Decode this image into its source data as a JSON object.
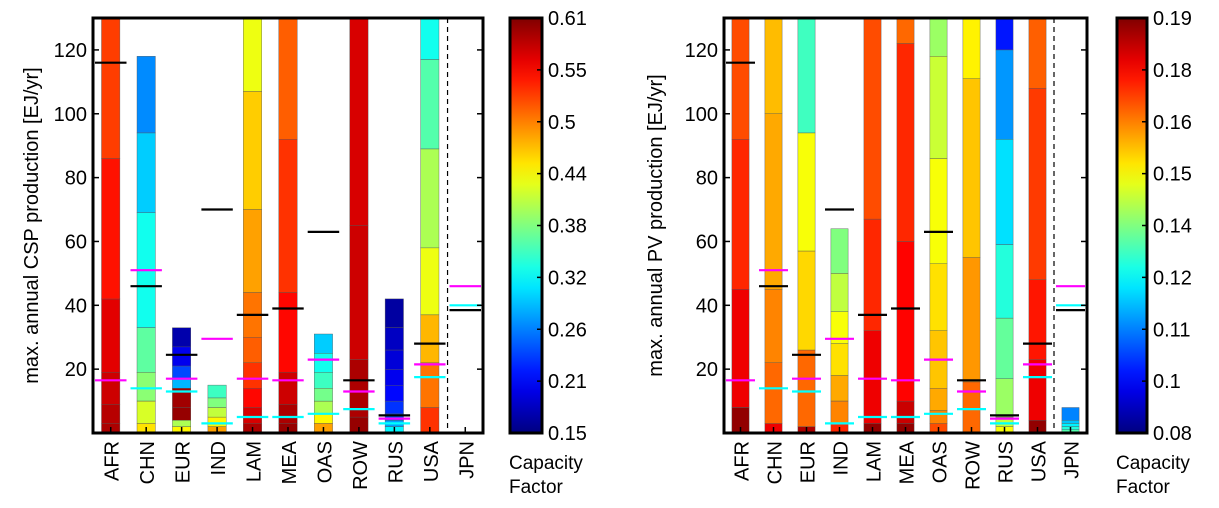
{
  "chart_data": [
    {
      "type": "bar",
      "ylabel": "max. annual CSP production [EJ/yr]",
      "ylim": [
        0,
        130
      ],
      "yticks": [
        20,
        40,
        60,
        80,
        100,
        120
      ],
      "grid": false,
      "categories": [
        "AFR",
        "CHN",
        "EUR",
        "IND",
        "LAM",
        "MEA",
        "OAS",
        "ROW",
        "RUS",
        "USA",
        "JPN"
      ],
      "separator_after": "USA",
      "colorbar": {
        "ticks": [
          "0.61",
          "0.55",
          "0.5",
          "0.44",
          "0.38",
          "0.32",
          "0.26",
          "0.21",
          "0.15"
        ],
        "min": 0.15,
        "max": 0.61,
        "label_line1": "Capacity",
        "label_line2": "Factor"
      },
      "stacks": [
        {
          "region": "AFR",
          "total": 130,
          "segments": [
            [
              0,
              3,
              0.59
            ],
            [
              3,
              9,
              0.585
            ],
            [
              9,
              19,
              0.575
            ],
            [
              19,
              42,
              0.565
            ],
            [
              42,
              86,
              0.545
            ],
            [
              86,
              130,
              0.525
            ]
          ]
        },
        {
          "region": "CHN",
          "total": 118,
          "segments": [
            [
              0,
              3,
              0.45
            ],
            [
              3,
              10,
              0.42
            ],
            [
              10,
              19,
              0.385
            ],
            [
              19,
              33,
              0.365
            ],
            [
              33,
              69,
              0.33
            ],
            [
              69,
              94,
              0.3
            ],
            [
              94,
              118,
              0.27
            ]
          ]
        },
        {
          "region": "EUR",
          "total": 33,
          "segments": [
            [
              0,
              2,
              0.44
            ],
            [
              2,
              4,
              0.4
            ],
            [
              4,
              8,
              0.6
            ],
            [
              8,
              14,
              0.595
            ],
            [
              14,
              17,
              0.29
            ],
            [
              17,
              21,
              0.24
            ],
            [
              21,
              27,
              0.2
            ],
            [
              27,
              33,
              0.17
            ]
          ]
        },
        {
          "region": "IND",
          "total": 15,
          "segments": [
            [
              0,
              2,
              0.48
            ],
            [
              2,
              5,
              0.44
            ],
            [
              5,
              8,
              0.41
            ],
            [
              8,
              11,
              0.38
            ],
            [
              11,
              15,
              0.35
            ]
          ]
        },
        {
          "region": "LAM",
          "total": 130,
          "segments": [
            [
              0,
              3,
              0.59
            ],
            [
              3,
              8,
              0.57
            ],
            [
              8,
              14,
              0.55
            ],
            [
              14,
              22,
              0.53
            ],
            [
              22,
              30,
              0.51
            ],
            [
              30,
              44,
              0.5
            ],
            [
              44,
              70,
              0.48
            ],
            [
              70,
              107,
              0.46
            ],
            [
              107,
              130,
              0.43
            ]
          ]
        },
        {
          "region": "MEA",
          "total": 130,
          "segments": [
            [
              0,
              3,
              0.6
            ],
            [
              3,
              9,
              0.59
            ],
            [
              9,
              19,
              0.575
            ],
            [
              19,
              44,
              0.55
            ],
            [
              44,
              92,
              0.53
            ],
            [
              92,
              130,
              0.51
            ]
          ]
        },
        {
          "region": "OAS",
          "total": 31,
          "segments": [
            [
              0,
              3,
              0.48
            ],
            [
              3,
              6,
              0.44
            ],
            [
              6,
              10,
              0.4
            ],
            [
              10,
              14,
              0.375
            ],
            [
              14,
              19,
              0.35
            ],
            [
              19,
              25,
              0.33
            ],
            [
              25,
              31,
              0.3
            ]
          ]
        },
        {
          "region": "ROW",
          "total": 130,
          "segments": [
            [
              0,
              5,
              0.6
            ],
            [
              5,
              23,
              0.59
            ],
            [
              23,
              65,
              0.575
            ],
            [
              65,
              130,
              0.57
            ]
          ]
        },
        {
          "region": "RUS",
          "total": 42,
          "segments": [
            [
              0,
              2,
              0.32
            ],
            [
              2,
              4,
              0.28
            ],
            [
              4,
              6,
              0.25
            ],
            [
              6,
              10,
              0.23
            ],
            [
              10,
              15,
              0.21
            ],
            [
              15,
              20,
              0.2
            ],
            [
              20,
              26,
              0.19
            ],
            [
              26,
              33,
              0.18
            ],
            [
              33,
              42,
              0.165
            ]
          ]
        },
        {
          "region": "USA",
          "total": 130,
          "segments": [
            [
              0,
              8,
              0.53
            ],
            [
              8,
              22,
              0.5
            ],
            [
              22,
              37,
              0.47
            ],
            [
              37,
              58,
              0.43
            ],
            [
              58,
              89,
              0.4
            ],
            [
              89,
              117,
              0.36
            ],
            [
              117,
              130,
              0.33
            ]
          ]
        },
        {
          "region": "JPN",
          "total": 0,
          "segments": []
        }
      ],
      "markers": {
        "black": [
          116,
          46,
          24.5,
          70,
          37,
          39,
          63,
          16.5,
          5.5,
          28,
          38.5
        ],
        "magenta": [
          16.5,
          51,
          17,
          29.5,
          17,
          16.5,
          23,
          13,
          4.5,
          21.5,
          46
        ],
        "cyan": [
          null,
          14,
          13,
          3,
          5,
          5,
          6,
          7.5,
          3,
          17.5,
          40
        ]
      }
    },
    {
      "type": "bar",
      "ylabel": "max. annual PV production [EJ/yr]",
      "ylim": [
        0,
        130
      ],
      "yticks": [
        20,
        40,
        60,
        80,
        100,
        120
      ],
      "grid": false,
      "categories": [
        "AFR",
        "CHN",
        "EUR",
        "IND",
        "LAM",
        "MEA",
        "OAS",
        "ROW",
        "RUS",
        "USA",
        "JPN"
      ],
      "separator_after": "USA",
      "colorbar": {
        "ticks": [
          "0.19",
          "0.18",
          "0.16",
          "0.15",
          "0.14",
          "0.12",
          "0.11",
          "0.1",
          "0.08"
        ],
        "min": 0.08,
        "max": 0.19,
        "label_line1": "Capacity",
        "label_line2": "Factor"
      },
      "stacks": [
        {
          "region": "AFR",
          "total": 130,
          "segments": [
            [
              0,
              8,
              0.188
            ],
            [
              8,
              45,
              0.178
            ],
            [
              45,
              92,
              0.172
            ],
            [
              92,
              130,
              0.168
            ]
          ]
        },
        {
          "region": "CHN",
          "total": 130,
          "segments": [
            [
              0,
              3,
              0.178
            ],
            [
              3,
              22,
              0.165
            ],
            [
              22,
              45,
              0.162
            ],
            [
              45,
              100,
              0.158
            ],
            [
              100,
              130,
              0.156
            ]
          ]
        },
        {
          "region": "EUR",
          "total": 130,
          "segments": [
            [
              0,
              2,
              0.185
            ],
            [
              2,
              26,
              0.165
            ],
            [
              26,
              57,
              0.153
            ],
            [
              57,
              94,
              0.148
            ],
            [
              94,
              130,
              0.128
            ]
          ]
        },
        {
          "region": "IND",
          "total": 64,
          "segments": [
            [
              0,
              3,
              0.172
            ],
            [
              3,
              10,
              0.162
            ],
            [
              10,
              18,
              0.158
            ],
            [
              18,
              28,
              0.152
            ],
            [
              28,
              38,
              0.148
            ],
            [
              38,
              50,
              0.142
            ],
            [
              50,
              64,
              0.135
            ]
          ]
        },
        {
          "region": "LAM",
          "total": 130,
          "segments": [
            [
              0,
              3,
              0.188
            ],
            [
              3,
              32,
              0.178
            ],
            [
              32,
              67,
              0.172
            ],
            [
              67,
              130,
              0.168
            ]
          ]
        },
        {
          "region": "MEA",
          "total": 130,
          "segments": [
            [
              0,
              3,
              0.188
            ],
            [
              3,
              10,
              0.182
            ],
            [
              10,
              60,
              0.176
            ],
            [
              60,
              122,
              0.172
            ],
            [
              122,
              130,
              0.165
            ]
          ]
        },
        {
          "region": "OAS",
          "total": 130,
          "segments": [
            [
              0,
              3,
              0.168
            ],
            [
              3,
              7,
              0.162
            ],
            [
              7,
              14,
              0.158
            ],
            [
              14,
              32,
              0.155
            ],
            [
              32,
              53,
              0.152
            ],
            [
              53,
              86,
              0.148
            ],
            [
              86,
              118,
              0.143
            ],
            [
              118,
              130,
              0.138
            ]
          ]
        },
        {
          "region": "ROW",
          "total": 130,
          "segments": [
            [
              0,
              16,
              0.165
            ],
            [
              16,
              55,
              0.16
            ],
            [
              55,
              111,
              0.155
            ],
            [
              111,
              130,
              0.15
            ]
          ]
        },
        {
          "region": "RUS",
          "total": 130,
          "segments": [
            [
              0,
              2,
              0.148
            ],
            [
              2,
              5,
              0.142
            ],
            [
              5,
              17,
              0.138
            ],
            [
              17,
              36,
              0.132
            ],
            [
              36,
              59,
              0.125
            ],
            [
              59,
              92,
              0.118
            ],
            [
              92,
              120,
              0.11
            ],
            [
              120,
              130,
              0.096
            ]
          ]
        },
        {
          "region": "USA",
          "total": 130,
          "segments": [
            [
              0,
              4,
              0.188
            ],
            [
              4,
              23,
              0.178
            ],
            [
              23,
              48,
              0.174
            ],
            [
              48,
              108,
              0.17
            ],
            [
              108,
              130,
              0.166
            ]
          ]
        },
        {
          "region": "JPN",
          "total": 8,
          "segments": [
            [
              0,
              1,
              0.13
            ],
            [
              1,
              2,
              0.125
            ],
            [
              2,
              3,
              0.12
            ],
            [
              3,
              4,
              0.115
            ],
            [
              4,
              8,
              0.108
            ]
          ]
        }
      ],
      "markers": {
        "black": [
          116,
          46,
          24.5,
          70,
          37,
          39,
          63,
          16.5,
          5.5,
          28,
          38.5
        ],
        "magenta": [
          16.5,
          51,
          17,
          29.5,
          17,
          16.5,
          23,
          13,
          4.5,
          21.5,
          46
        ],
        "cyan": [
          null,
          14,
          13,
          3,
          5,
          5,
          6,
          7.5,
          3,
          17.5,
          40
        ]
      }
    }
  ]
}
